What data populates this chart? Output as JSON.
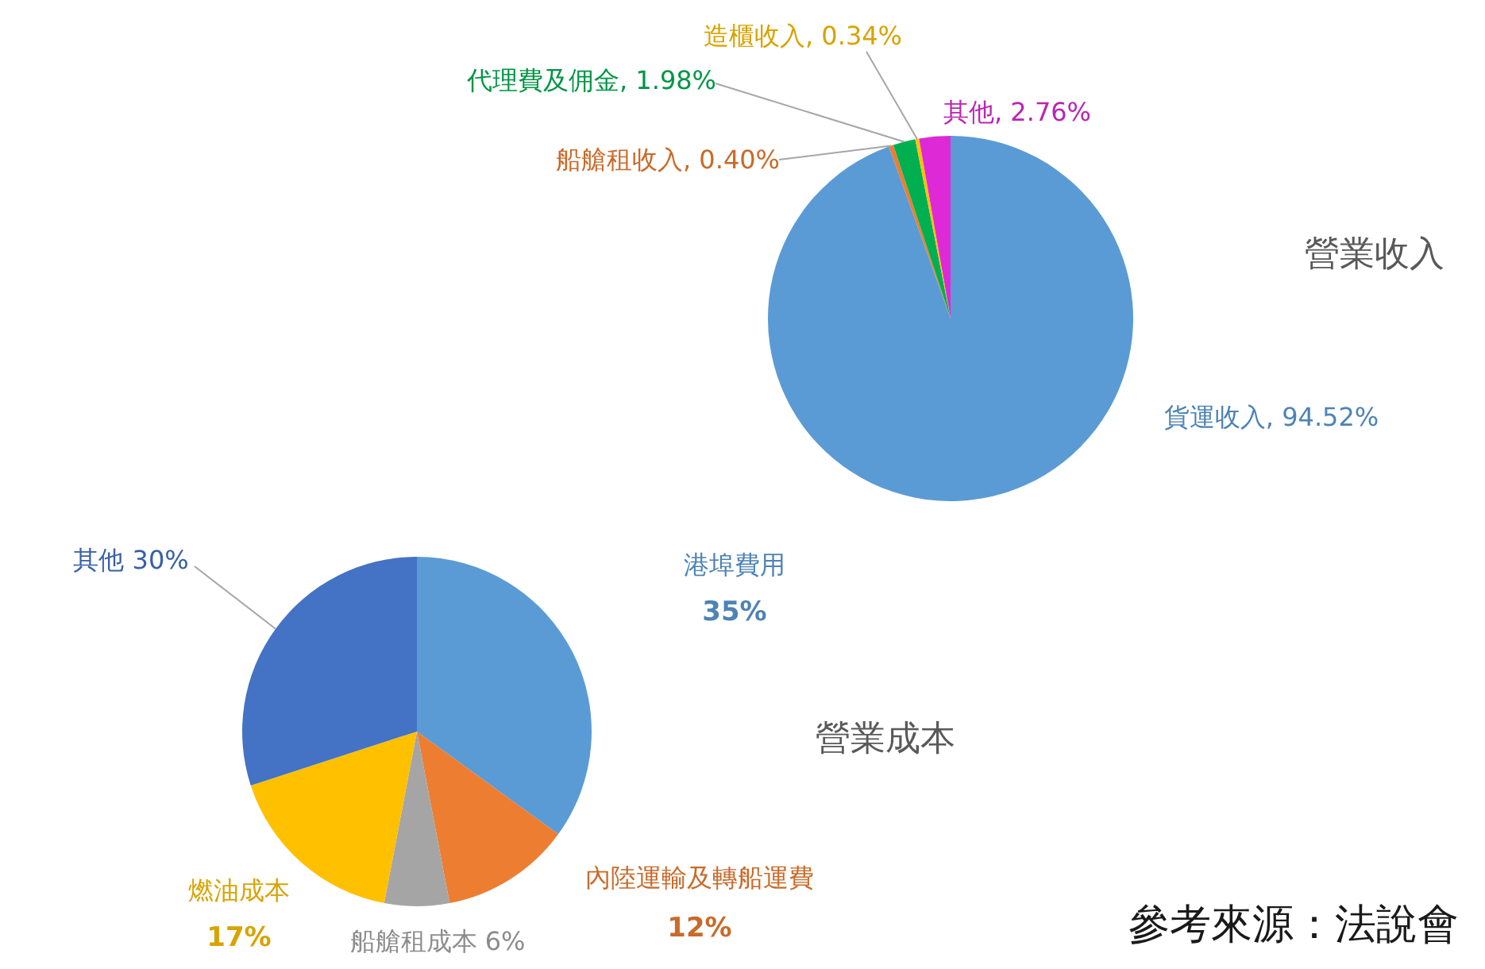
{
  "chart_data": [
    {
      "type": "pie",
      "title": "營業收入",
      "categories": [
        "貨運收入",
        "船艙租收入",
        "代理費及佣金",
        "造櫃收入",
        "其他"
      ],
      "values": [
        94.52,
        0.4,
        1.98,
        0.34,
        2.76
      ],
      "value_labels": [
        "94.52%",
        "0.40%",
        "1.98%",
        "0.34%",
        "2.76%"
      ],
      "colors": [
        "#5b9bd5",
        "#ed7d31",
        "#00b050",
        "#ffc000",
        "#dd2ad6"
      ]
    },
    {
      "type": "pie",
      "title": "營業成本",
      "categories": [
        "港埠費用",
        "內陸運輸及轉船運費",
        "船艙租成本",
        "燃油成本",
        "其他"
      ],
      "values": [
        35,
        12,
        6,
        17,
        30
      ],
      "value_labels": [
        "35%",
        "12%",
        "6%",
        "17%",
        "30%"
      ],
      "colors": [
        "#5b9bd5",
        "#ed7d31",
        "#a5a5a5",
        "#ffc000",
        "#4472c4"
      ],
      "annotations": [
        "參考來源：法說會"
      ]
    }
  ]
}
